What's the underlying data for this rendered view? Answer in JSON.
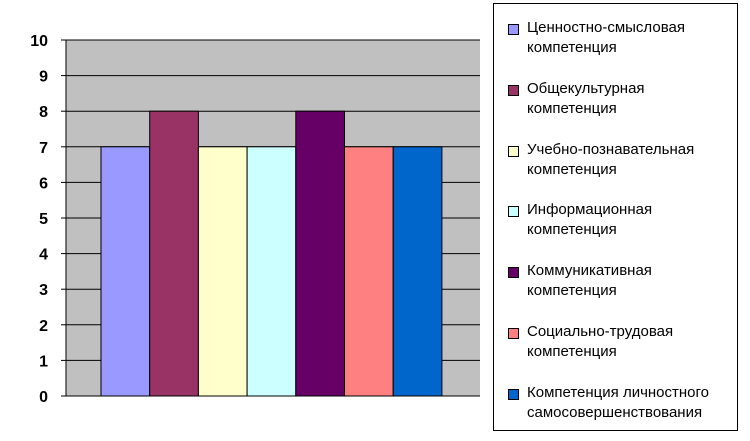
{
  "chart_data": {
    "type": "bar",
    "ylim": [
      0,
      10
    ],
    "yticks": [
      "0",
      "1",
      "2",
      "3",
      "4",
      "5",
      "6",
      "7",
      "8",
      "9",
      "10"
    ],
    "grid": true,
    "legend_position": "right",
    "plot_background": "#C0C0C0",
    "gridline_color": "#000000",
    "series": [
      {
        "name": "Ценностно-смысловая\nкомпетенция",
        "value": 7,
        "color": "#9999FF"
      },
      {
        "name": "Общекультурная\nкомпетенция",
        "value": 8,
        "color": "#993366"
      },
      {
        "name": "Учебно-познавательная\nкомпетенция",
        "value": 7,
        "color": "#FFFFCC"
      },
      {
        "name": "Информационная\nкомпетенция",
        "value": 7,
        "color": "#CCFFFF"
      },
      {
        "name": "Коммуникативная\nкомпетенция",
        "value": 8,
        "color": "#660066"
      },
      {
        "name": "Социально-трудовая\nкомпетенция",
        "value": 7,
        "color": "#FF8080"
      },
      {
        "name": "Компетенция личностного\nсамосовершенствования",
        "value": 7,
        "color": "#0066CC"
      }
    ]
  }
}
